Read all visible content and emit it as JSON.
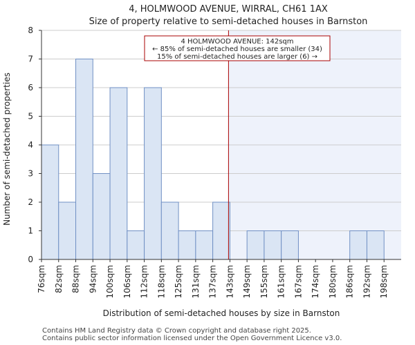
{
  "chart_data": {
    "type": "bar",
    "title": "4, HOLMWOOD AVENUE, WIRRAL, CH61 1AX",
    "subtitle": "Size of property relative to semi-detached houses in Barnston",
    "xlabel": "Distribution of semi-detached houses by size in Barnston",
    "ylabel": "Number of semi-detached properties",
    "categories": [
      "76sqm",
      "82sqm",
      "88sqm",
      "94sqm",
      "100sqm",
      "106sqm",
      "112sqm",
      "118sqm",
      "125sqm",
      "131sqm",
      "137sqm",
      "143sqm",
      "149sqm",
      "155sqm",
      "161sqm",
      "167sqm",
      "174sqm",
      "180sqm",
      "186sqm",
      "192sqm",
      "198sqm"
    ],
    "values": [
      4,
      2,
      7,
      3,
      6,
      1,
      6,
      2,
      1,
      1,
      2,
      0,
      1,
      1,
      1,
      0,
      0,
      0,
      1,
      1,
      0
    ],
    "ylim": [
      0,
      8
    ],
    "yticks": [
      0,
      1,
      2,
      3,
      4,
      5,
      6,
      7,
      8
    ],
    "marker": {
      "value": 142,
      "unit": "sqm",
      "position_bins": 10.92
    },
    "annotation": {
      "line1": "4 HOLMWOOD AVENUE: 142sqm",
      "line2": "← 85% of semi-detached houses are smaller (34)",
      "line3": "15% of semi-detached houses are larger (6) →"
    },
    "colors": {
      "bar_fill": "#dae5f4",
      "bar_stroke": "#7090c4",
      "highlight_region": "#eef2fb",
      "marker_line": "#aa0000",
      "grid": "#cccccc"
    }
  },
  "footer": {
    "line1": "Contains HM Land Registry data © Crown copyright and database right 2025.",
    "line2": "Contains public sector information licensed under the Open Government Licence v3.0."
  }
}
